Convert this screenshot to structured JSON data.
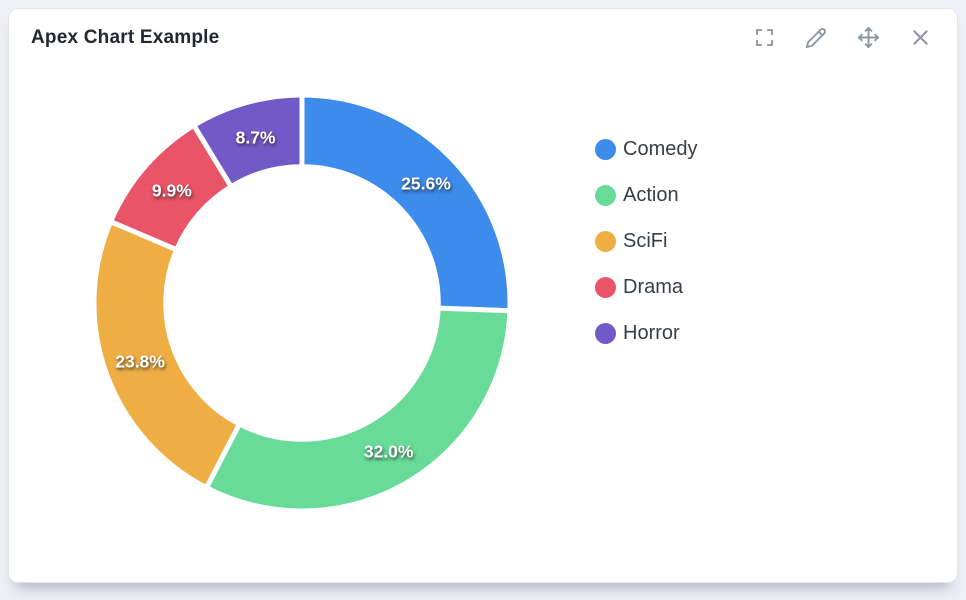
{
  "card": {
    "title": "Apex Chart Example"
  },
  "toolbar": {
    "buttons": [
      {
        "name": "fullscreen",
        "tooltip": "Fullscreen"
      },
      {
        "name": "edit",
        "tooltip": "Edit"
      },
      {
        "name": "move",
        "tooltip": "Move"
      },
      {
        "name": "close",
        "tooltip": "Close"
      }
    ]
  },
  "chart_data": {
    "type": "pie",
    "variant": "donut",
    "labels": [
      "Comedy",
      "Action",
      "SciFi",
      "Drama",
      "Horror"
    ],
    "values": [
      25.6,
      32.0,
      23.8,
      9.9,
      8.7
    ],
    "data_labels": [
      "25.6%",
      "32.0%",
      "23.8%",
      "9.9%",
      "8.7%"
    ],
    "colors": [
      "#3D8BEB",
      "#68DB99",
      "#EFAE43",
      "#E95468",
      "#715AC8"
    ],
    "unit": "percent",
    "start_angle": 0,
    "donut_hole_ratio": 0.655,
    "slice_gap_color": "#ffffff",
    "slice_gap_width": 5,
    "legend_position": "right"
  }
}
